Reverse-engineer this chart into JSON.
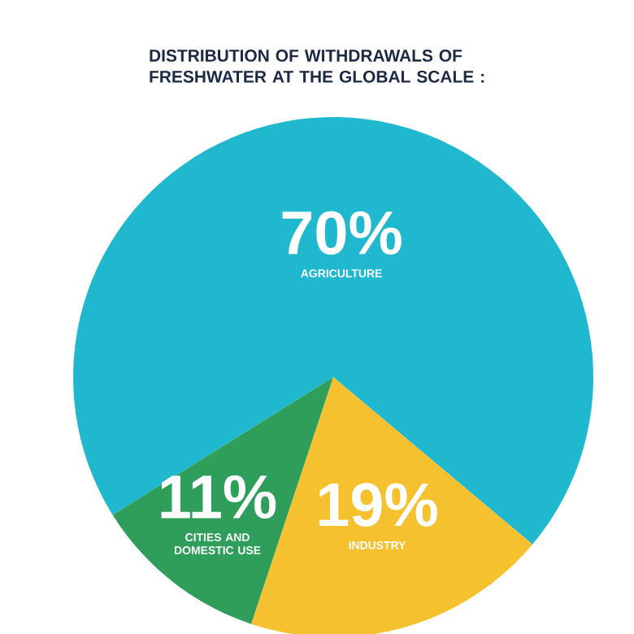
{
  "chart_data": {
    "type": "pie",
    "title": "DISTRIBUTION OF WITHDRAWALS OF FRESHWATER AT THE GLOBAL SCALE :",
    "categories": [
      "AGRICULTURE",
      "INDUSTRY",
      "CITIES AND DOMESTIC USE"
    ],
    "values": [
      70,
      19,
      11
    ],
    "colors": [
      "#1fb8cf",
      "#f5c12e",
      "#2e9e5a"
    ],
    "value_labels": [
      "70%",
      "19%",
      "11%"
    ]
  }
}
